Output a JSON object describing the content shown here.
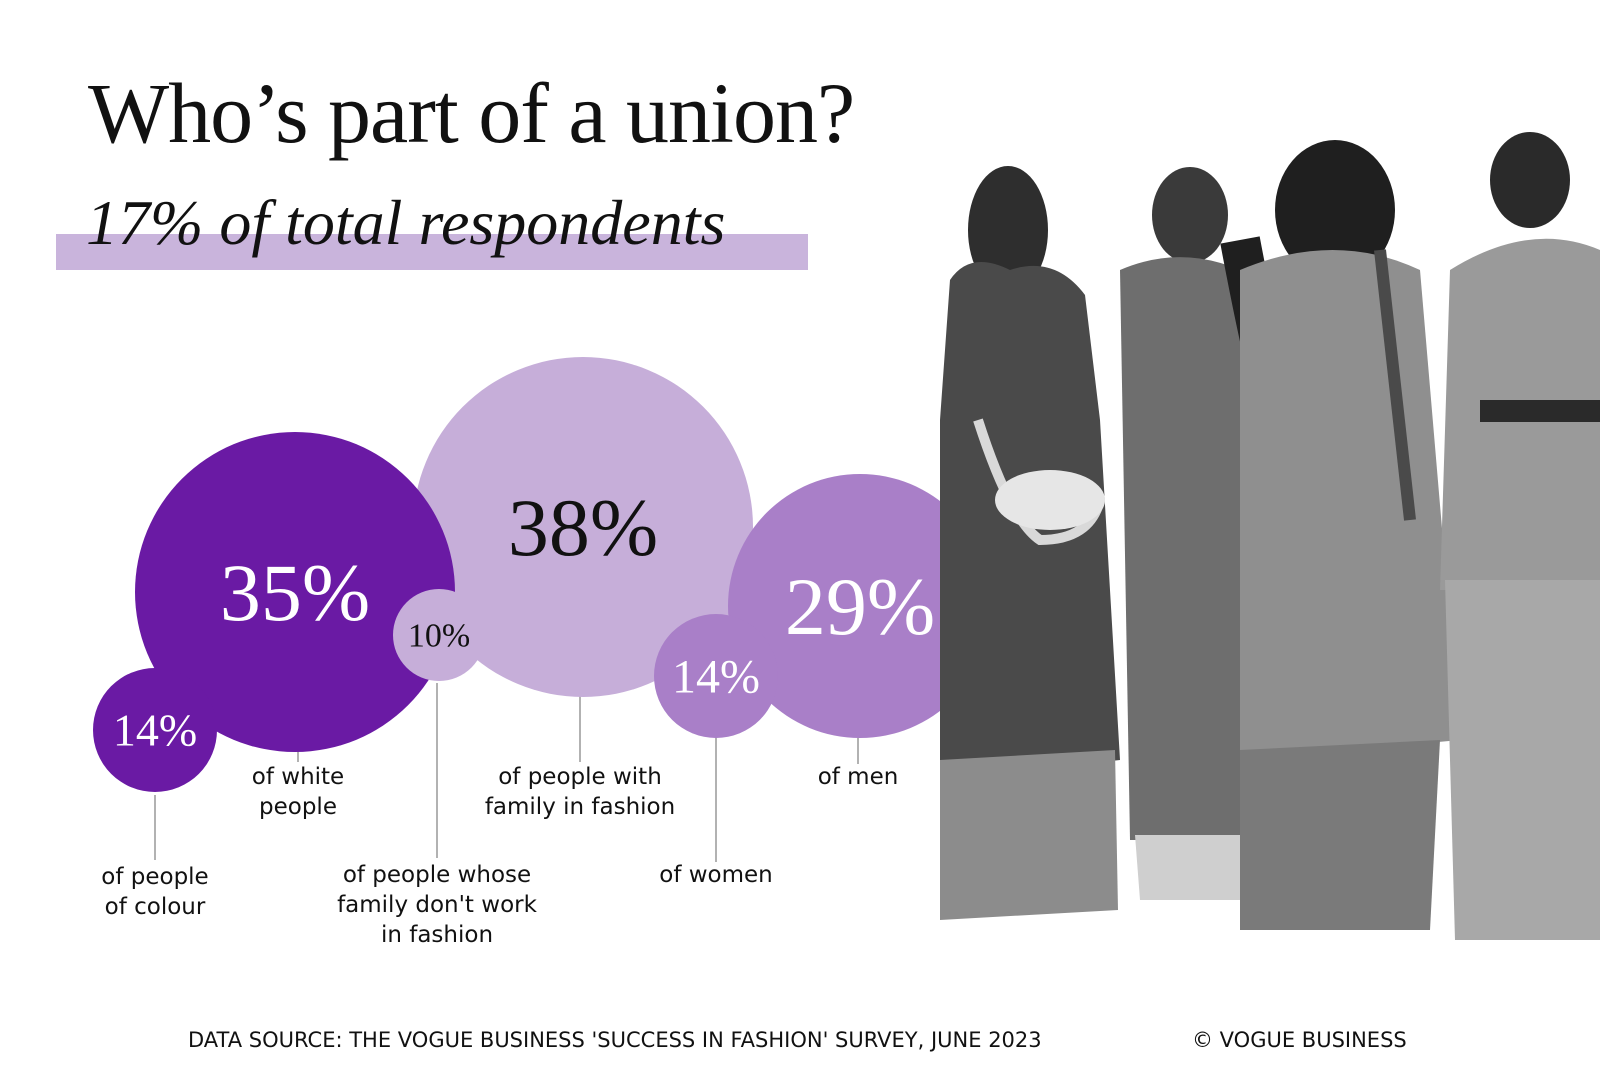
{
  "title": "Who’s part of a union?",
  "subtitle": "17% of total respondents",
  "footer": {
    "source": "DATA SOURCE: THE VOGUE BUSINESS 'SUCCESS IN FASHION' SURVEY, JUNE 2023",
    "copyright": "© VOGUE BUSINESS"
  },
  "colors": {
    "accent_dark": "#6a1aa4",
    "accent_mid": "#a97fc8",
    "accent_light": "#c6aed9",
    "subtitle_band": "#c9b4dc",
    "text": "#111111",
    "leader_line": "#999999"
  },
  "photo": {
    "description_icon": "people-photo-icon"
  },
  "chart_data": {
    "type": "bubble",
    "unit": "%",
    "values": [
      {
        "value": 14,
        "label": "14%",
        "caption": [
          "of people",
          "of colour"
        ],
        "color": "#6a1aa4"
      },
      {
        "value": 35,
        "label": "35%",
        "caption": [
          "of white",
          "people"
        ],
        "color": "#6a1aa4"
      },
      {
        "value": 10,
        "label": "10%",
        "caption": [
          "of people whose",
          "family don't work",
          "in fashion"
        ],
        "color": "#c6aed9"
      },
      {
        "value": 38,
        "label": "38%",
        "caption": [
          "of people with",
          "family in fashion"
        ],
        "color": "#c6aed9"
      },
      {
        "value": 14,
        "label": "14%",
        "caption": [
          "of women"
        ],
        "color": "#a97fc8"
      },
      {
        "value": 29,
        "label": "29%",
        "caption": [
          "of men"
        ],
        "color": "#a97fc8"
      }
    ]
  }
}
